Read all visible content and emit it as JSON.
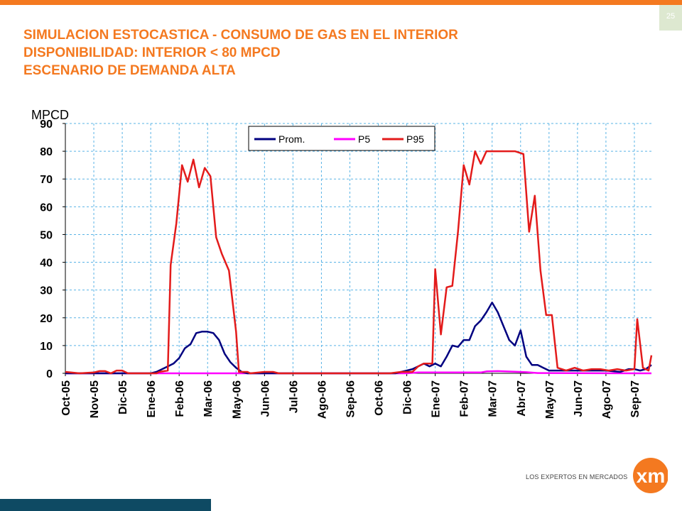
{
  "page": {
    "number": "25"
  },
  "title": {
    "line1": "SIMULACION ESTOCASTICA - CONSUMO DE GAS EN EL INTERIOR",
    "line2": "DISPONIBILIDAD: INTERIOR < 80 MPCD",
    "line3": "ESCENARIO DE DEMANDA ALTA"
  },
  "logo": {
    "text": "LOS EXPERTOS EN MERCADOS",
    "mark": "xm"
  },
  "colors": {
    "accent": "#f47920",
    "footer_bar": "#0e4a63",
    "prom": "#000080",
    "p5": "#ff00ff",
    "p95": "#e31b1b",
    "grid": "#5ab4e6"
  },
  "chart_data": {
    "type": "line",
    "ylabel": "MPCD",
    "ylim": [
      0,
      90
    ],
    "yticks": [
      0,
      10,
      20,
      30,
      40,
      50,
      60,
      70,
      80,
      90
    ],
    "grid": true,
    "legend_position": "top-center",
    "categories": [
      "Oct-05",
      "Nov-05",
      "Dic-05",
      "Ene-06",
      "Feb-06",
      "Mar-06",
      "May-06",
      "Jun-06",
      "Jul-06",
      "Ago-06",
      "Sep-06",
      "Oct-06",
      "Dic-06",
      "Ene-07",
      "Feb-07",
      "Mar-07",
      "Abr-07",
      "May-07",
      "Jun-07",
      "Ago-07",
      "Sep-07"
    ],
    "x_range": [
      0,
      20.6
    ],
    "series": [
      {
        "name": "Prom.",
        "color": "#000080",
        "points": [
          [
            0,
            0
          ],
          [
            3,
            0
          ],
          [
            3.2,
            0.5
          ],
          [
            3.4,
            1.5
          ],
          [
            3.6,
            2.5
          ],
          [
            3.8,
            3.5
          ],
          [
            4.0,
            5.5
          ],
          [
            4.2,
            9
          ],
          [
            4.4,
            10.5
          ],
          [
            4.6,
            14.5
          ],
          [
            4.8,
            15
          ],
          [
            5.0,
            15
          ],
          [
            5.2,
            14.5
          ],
          [
            5.4,
            12
          ],
          [
            5.6,
            7
          ],
          [
            5.8,
            4
          ],
          [
            6.0,
            2
          ],
          [
            6.2,
            0.5
          ],
          [
            6.4,
            0
          ],
          [
            11.6,
            0
          ],
          [
            11.8,
            0.5
          ],
          [
            12.0,
            1
          ],
          [
            12.2,
            1.5
          ],
          [
            12.4,
            2.5
          ],
          [
            12.6,
            3.5
          ],
          [
            12.8,
            2.5
          ],
          [
            13.0,
            3.5
          ],
          [
            13.2,
            2.5
          ],
          [
            13.4,
            6
          ],
          [
            13.6,
            10
          ],
          [
            13.8,
            9.5
          ],
          [
            14.0,
            12
          ],
          [
            14.2,
            12
          ],
          [
            14.4,
            17
          ],
          [
            14.6,
            19
          ],
          [
            14.8,
            22
          ],
          [
            15.0,
            25.5
          ],
          [
            15.2,
            22
          ],
          [
            15.4,
            17
          ],
          [
            15.6,
            12
          ],
          [
            15.8,
            10
          ],
          [
            16.0,
            15.5
          ],
          [
            16.2,
            6
          ],
          [
            16.4,
            3
          ],
          [
            16.6,
            3
          ],
          [
            16.8,
            2
          ],
          [
            17.0,
            1
          ],
          [
            17.5,
            1
          ],
          [
            18,
            1
          ],
          [
            18.5,
            1
          ],
          [
            19,
            1
          ],
          [
            19.5,
            0.5
          ],
          [
            19.8,
            1.5
          ],
          [
            20.0,
            1.5
          ],
          [
            20.2,
            1
          ],
          [
            20.4,
            1.5
          ],
          [
            20.6,
            3
          ]
        ]
      },
      {
        "name": "P5",
        "color": "#ff00ff",
        "points": [
          [
            0,
            0
          ],
          [
            12.0,
            0
          ],
          [
            12.4,
            0.3
          ],
          [
            14.6,
            0.3
          ],
          [
            14.8,
            0.7
          ],
          [
            15.2,
            0.8
          ],
          [
            15.8,
            0.6
          ],
          [
            16.2,
            0.4
          ],
          [
            16.6,
            0.1
          ],
          [
            20.0,
            0
          ],
          [
            20.6,
            0
          ]
        ]
      },
      {
        "name": "P95",
        "color": "#e31b1b",
        "points": [
          [
            0,
            0.5
          ],
          [
            0.5,
            0
          ],
          [
            1.0,
            0.3
          ],
          [
            1.2,
            0.8
          ],
          [
            1.4,
            0.8
          ],
          [
            1.6,
            0
          ],
          [
            1.8,
            1
          ],
          [
            2.0,
            1
          ],
          [
            2.2,
            0
          ],
          [
            3.2,
            0
          ],
          [
            3.3,
            0.5
          ],
          [
            3.6,
            1
          ],
          [
            3.7,
            39
          ],
          [
            3.9,
            54
          ],
          [
            4.1,
            75
          ],
          [
            4.3,
            69
          ],
          [
            4.5,
            77
          ],
          [
            4.7,
            67
          ],
          [
            4.9,
            74
          ],
          [
            5.1,
            71
          ],
          [
            5.3,
            49
          ],
          [
            5.5,
            43
          ],
          [
            5.75,
            37
          ],
          [
            6.0,
            15
          ],
          [
            6.1,
            0.5
          ],
          [
            6.4,
            0.5
          ],
          [
            6.5,
            0
          ],
          [
            7.0,
            0.5
          ],
          [
            7.3,
            0.5
          ],
          [
            7.5,
            0
          ],
          [
            11.4,
            0
          ],
          [
            11.8,
            0.5
          ],
          [
            12.2,
            0.5
          ],
          [
            12.4,
            2.5
          ],
          [
            12.6,
            3.5
          ],
          [
            12.9,
            3.5
          ],
          [
            13.0,
            37.5
          ],
          [
            13.2,
            14
          ],
          [
            13.4,
            31
          ],
          [
            13.6,
            31.5
          ],
          [
            13.8,
            51
          ],
          [
            14.0,
            75
          ],
          [
            14.2,
            68
          ],
          [
            14.4,
            80
          ],
          [
            14.6,
            75.5
          ],
          [
            14.8,
            80
          ],
          [
            15.4,
            80
          ],
          [
            15.8,
            80
          ],
          [
            16.1,
            79
          ],
          [
            16.3,
            51
          ],
          [
            16.5,
            64
          ],
          [
            16.7,
            37
          ],
          [
            16.9,
            21
          ],
          [
            17.1,
            21
          ],
          [
            17.3,
            2
          ],
          [
            17.6,
            1
          ],
          [
            17.9,
            2
          ],
          [
            18.2,
            1
          ],
          [
            18.5,
            1.5
          ],
          [
            18.8,
            1.5
          ],
          [
            19.1,
            1
          ],
          [
            19.4,
            1.5
          ],
          [
            19.7,
            1
          ],
          [
            20.0,
            1.5
          ],
          [
            20.1,
            19.5
          ],
          [
            20.3,
            2
          ],
          [
            20.5,
            1
          ],
          [
            20.6,
            6.5
          ]
        ]
      }
    ]
  }
}
